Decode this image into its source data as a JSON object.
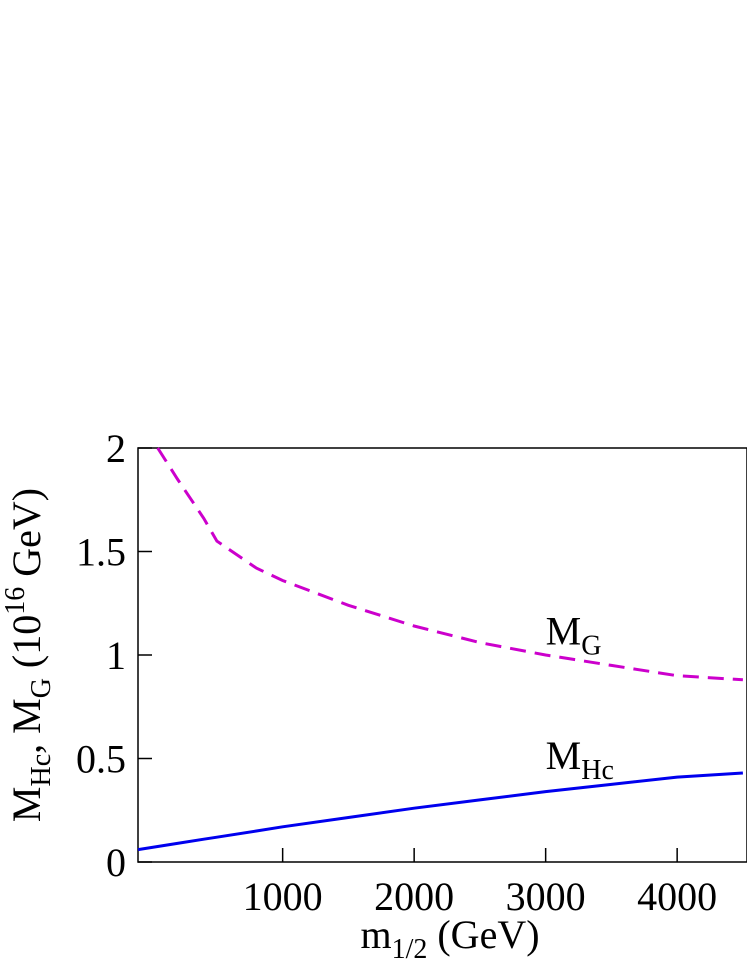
{
  "chart_data": {
    "type": "line",
    "x_label": [
      {
        "text": "m"
      },
      {
        "text": "1/2",
        "shift": "sub"
      },
      {
        "text": " (GeV)"
      }
    ],
    "y_label": [
      {
        "text": "M"
      },
      {
        "text": "Hc",
        "shift": "sub"
      },
      {
        "text": ", M"
      },
      {
        "text": "G",
        "shift": "sub"
      },
      {
        "text": " (10"
      },
      {
        "text": "16",
        "shift": "super"
      },
      {
        "text": " GeV)"
      }
    ],
    "x": [
      -100,
      50,
      200,
      400,
      500,
      800,
      1000,
      1500,
      2000,
      2500,
      3000,
      3500,
      4000,
      4500
    ],
    "series": [
      {
        "name": "M_Hc",
        "color": "#0000ee",
        "dash": "solid",
        "values": [
          0.06,
          0.075,
          0.09,
          0.11,
          0.12,
          0.15,
          0.17,
          0.215,
          0.26,
          0.3,
          0.34,
          0.375,
          0.41,
          0.43
        ]
      },
      {
        "name": "M_G",
        "color": "#cc00cc",
        "dash": "dashed",
        "values": [
          null,
          2.0,
          1.85,
          1.66,
          1.55,
          1.42,
          1.36,
          1.24,
          1.14,
          1.06,
          1.0,
          0.95,
          0.9,
          0.88
        ]
      }
    ],
    "annotations": [
      {
        "text": "M",
        "sub": "G",
        "x": 3000,
        "y": 1.05
      },
      {
        "text": "M",
        "sub": "Hc",
        "x": 3000,
        "y": 0.45
      }
    ],
    "xlim": [
      -100,
      4500
    ],
    "ylim": [
      0,
      2
    ],
    "xticks": [
      1000,
      2000,
      3000,
      4000
    ],
    "yticks": [
      0,
      0.5,
      1,
      1.5,
      2
    ]
  }
}
